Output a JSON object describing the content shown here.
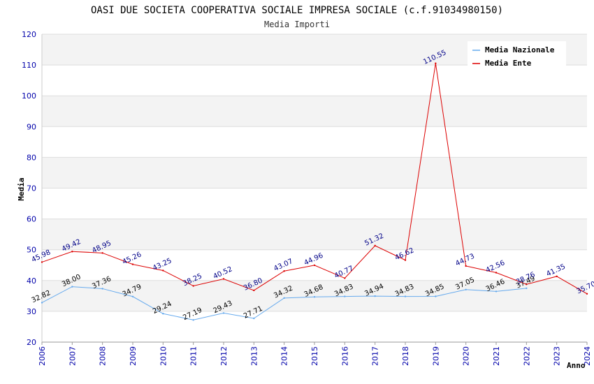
{
  "chart_data": {
    "type": "line",
    "title": "OASI DUE SOCIETA COOPERATIVA SOCIALE IMPRESA SOCIALE (c.f.91034980150)",
    "subtitle": "Media Importi",
    "xlabel": "Anno",
    "ylabel": "Media",
    "ylim": [
      20,
      120
    ],
    "yticks": [
      "20",
      "30",
      "40",
      "50",
      "60",
      "70",
      "80",
      "90",
      "100",
      "110",
      "120"
    ],
    "categories": [
      "2006",
      "2007",
      "2008",
      "2009",
      "2010",
      "2011",
      "2012",
      "2013",
      "2014",
      "2015",
      "2016",
      "2017",
      "2018",
      "2019",
      "2020",
      "2021",
      "2022",
      "2023",
      "2024"
    ],
    "legend_position": "top-right",
    "series": [
      {
        "name": "Media Nazionale",
        "color": "#66aaee",
        "label_color": "#000000",
        "values": [
          32.82,
          38.0,
          37.36,
          34.79,
          29.24,
          27.19,
          29.43,
          27.71,
          34.32,
          34.68,
          34.83,
          34.94,
          34.83,
          34.85,
          37.05,
          36.46,
          37.49,
          null,
          null
        ],
        "labels": [
          "32.82",
          "38.00",
          "37.36",
          "34.79",
          "29.24",
          "27.19",
          "29.43",
          "27.71",
          "34.32",
          "34.68",
          "34.83",
          "34.94",
          "34.83",
          "34.85",
          "37.05",
          "36.46",
          "37.49",
          null,
          null
        ]
      },
      {
        "name": "Media Ente",
        "color": "#dd0000",
        "label_color": "#000088",
        "values": [
          45.98,
          49.42,
          48.95,
          45.26,
          43.25,
          38.25,
          40.52,
          36.8,
          43.07,
          44.96,
          40.77,
          51.32,
          46.62,
          110.55,
          44.73,
          42.56,
          38.76,
          41.35,
          35.7
        ],
        "labels": [
          "45.98",
          "49.42",
          "48.95",
          "45.26",
          "43.25",
          "38.25",
          "40.52",
          "36.80",
          "43.07",
          "44.96",
          "40.77",
          "51.32",
          "46.62",
          "110.55",
          "44.73",
          "42.56",
          "38.76",
          "41.35",
          "35.70"
        ]
      }
    ]
  }
}
